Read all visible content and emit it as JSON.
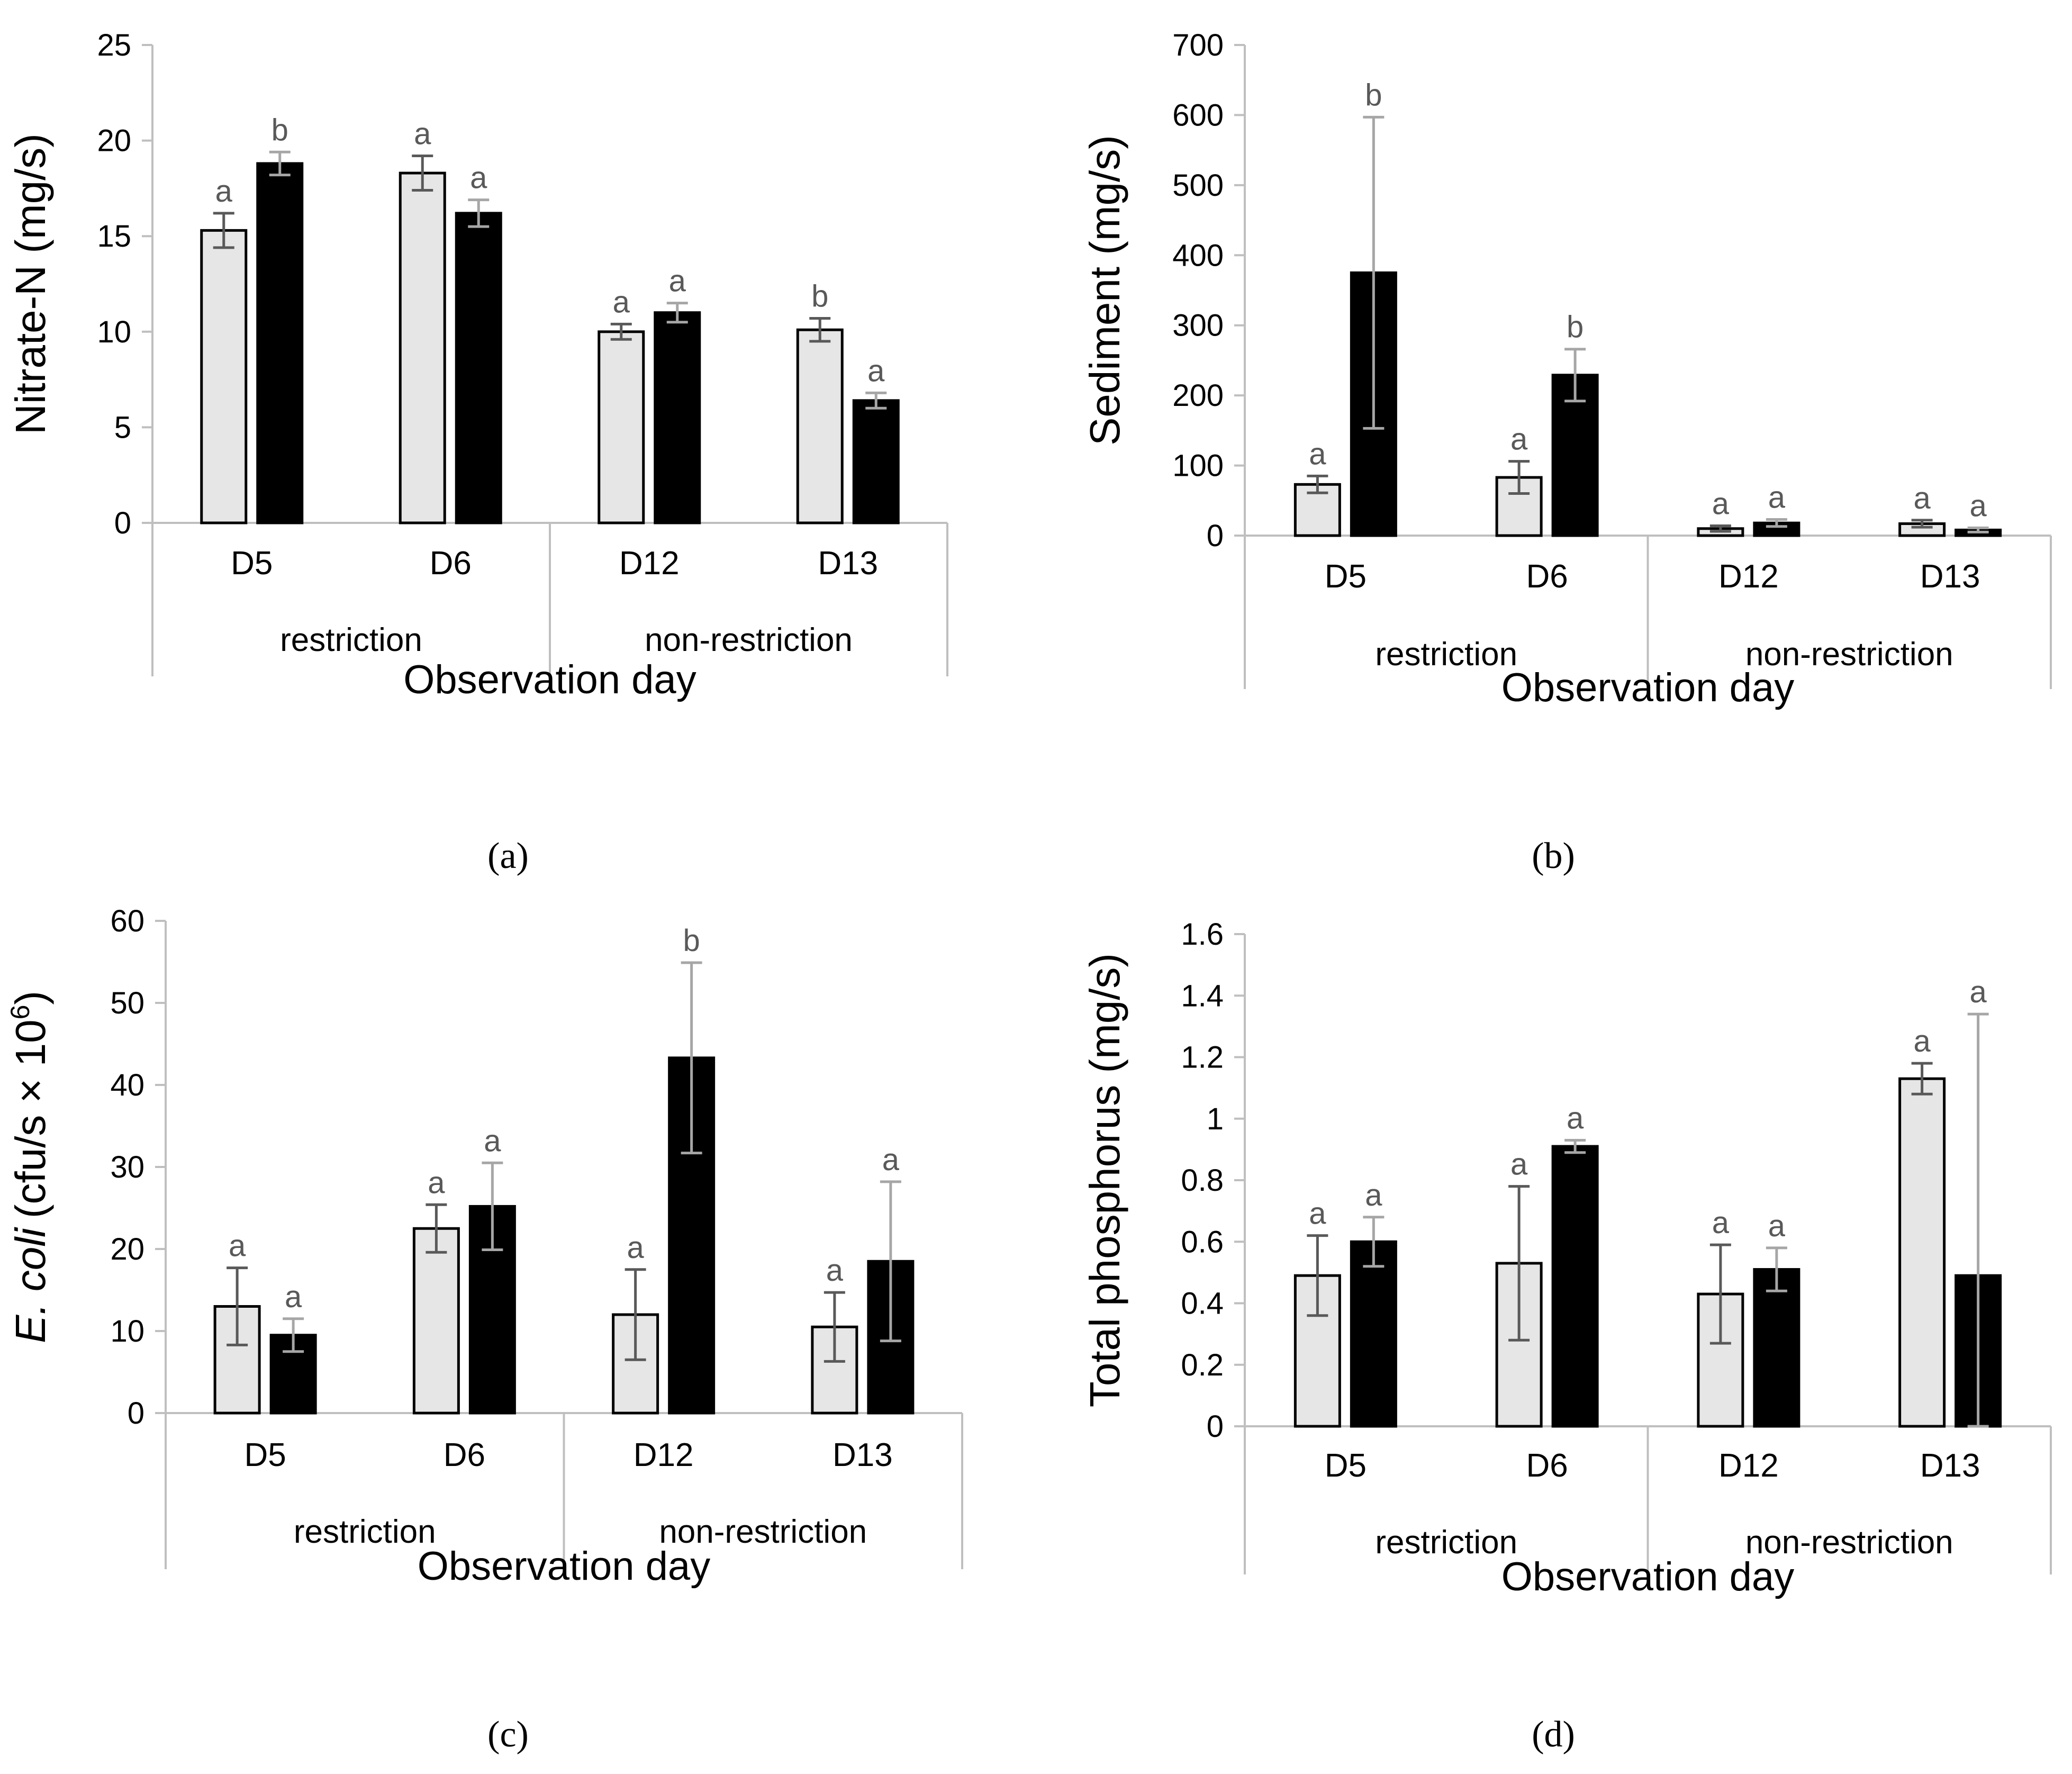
{
  "figure": {
    "captions": [
      "(a)",
      "(b)",
      "(c)",
      "(d)"
    ]
  },
  "colors": {
    "series_light": "#e6e6e6",
    "series_dark": "#000000",
    "axis": "#bfbfbf",
    "error_bar_dark": "#595959",
    "error_bar_light": "#a6a6a6",
    "letter": "#595959",
    "text": "#000000"
  },
  "chart_data": [
    {
      "type": "bar",
      "title": "",
      "caption": "(a)",
      "ylabel": "Nitrate-N (mg/s)",
      "xlabel": "Observation day",
      "categories": [
        "D5",
        "D6",
        "D12",
        "D13"
      ],
      "groups": [
        {
          "label": "restriction",
          "span": 2
        },
        {
          "label": "non-restriction",
          "span": 2
        }
      ],
      "yticks": [
        "0",
        "5",
        "10",
        "15",
        "20",
        "25"
      ],
      "ylim": [
        0,
        25
      ],
      "series": [
        {
          "name": "light",
          "values": [
            15.3,
            18.3,
            10.0,
            10.1
          ],
          "errors": [
            0.9,
            0.9,
            0.4,
            0.6
          ],
          "letters": [
            "a",
            "a",
            "a",
            "b"
          ]
        },
        {
          "name": "dark",
          "values": [
            18.8,
            16.2,
            11.0,
            6.4
          ],
          "errors": [
            0.6,
            0.7,
            0.5,
            0.4
          ],
          "letters": [
            "b",
            "a",
            "a",
            "a"
          ]
        }
      ]
    },
    {
      "type": "bar",
      "title": "",
      "caption": "(b)",
      "ylabel": "Sediment (mg/s)",
      "xlabel": "Observation day",
      "categories": [
        "D5",
        "D6",
        "D12",
        "D13"
      ],
      "groups": [
        {
          "label": "restriction",
          "span": 2
        },
        {
          "label": "non-restriction",
          "span": 2
        }
      ],
      "yticks": [
        "0",
        "100",
        "200",
        "300",
        "400",
        "500",
        "600",
        "700"
      ],
      "ylim": [
        0,
        700
      ],
      "series": [
        {
          "name": "light",
          "values": [
            73,
            83,
            10,
            17
          ],
          "errors": [
            12,
            23,
            4,
            5
          ],
          "letters": [
            "a",
            "a",
            "a",
            "a"
          ]
        },
        {
          "name": "dark",
          "values": [
            375,
            229,
            18,
            8
          ],
          "errors": [
            222,
            37,
            5,
            3
          ],
          "letters": [
            "b",
            "b",
            "a",
            "a"
          ]
        }
      ]
    },
    {
      "type": "bar",
      "title": "",
      "caption": "(c)",
      "ylabel_italic": "E. coli",
      "ylabel_rest": "(cfu/s × 10",
      "ylabel_sup": "6",
      "ylabel_close": ")",
      "xlabel": "Observation day",
      "categories": [
        "D5",
        "D6",
        "D12",
        "D13"
      ],
      "groups": [
        {
          "label": "restriction",
          "span": 2
        },
        {
          "label": "non-restriction",
          "span": 2
        }
      ],
      "yticks": [
        "0",
        "10",
        "20",
        "30",
        "40",
        "50",
        "60"
      ],
      "ylim": [
        0,
        60
      ],
      "series": [
        {
          "name": "light",
          "values": [
            13.0,
            22.5,
            12.0,
            10.5
          ],
          "errors": [
            4.7,
            2.9,
            5.5,
            4.2
          ],
          "letters": [
            "a",
            "a",
            "a",
            "a"
          ]
        },
        {
          "name": "dark",
          "values": [
            9.5,
            25.2,
            43.3,
            18.5
          ],
          "errors": [
            2.0,
            5.3,
            11.6,
            9.7
          ],
          "letters": [
            "a",
            "a",
            "b",
            "a"
          ]
        }
      ]
    },
    {
      "type": "bar",
      "title": "",
      "caption": "(d)",
      "ylabel": "Total phosphorus (mg/s)",
      "xlabel": "Observation day",
      "categories": [
        "D5",
        "D6",
        "D12",
        "D13"
      ],
      "groups": [
        {
          "label": "restriction",
          "span": 2
        },
        {
          "label": "non-restriction",
          "span": 2
        }
      ],
      "yticks": [
        "0",
        "0.2",
        "0.4",
        "0.6",
        "0.8",
        "1",
        "1.2",
        "1.4",
        "1.6"
      ],
      "ylim": [
        0,
        1.6
      ],
      "series": [
        {
          "name": "light",
          "values": [
            0.49,
            0.53,
            0.43,
            1.13
          ],
          "errors": [
            0.13,
            0.25,
            0.16,
            0.05
          ],
          "letters": [
            "a",
            "a",
            "a",
            "a"
          ]
        },
        {
          "name": "dark",
          "values": [
            0.6,
            0.91,
            0.51,
            0.49
          ],
          "errors": [
            0.08,
            0.02,
            0.07,
            0.85
          ],
          "letters": [
            "a",
            "a",
            "a",
            "a"
          ]
        }
      ]
    }
  ]
}
